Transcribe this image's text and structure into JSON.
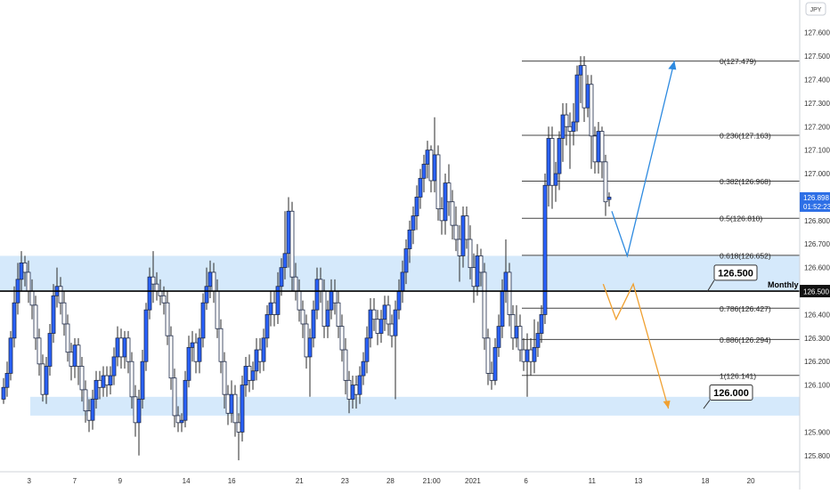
{
  "chart_data": {
    "type": "candlestick",
    "currency": "JPY",
    "y_axis_range": [
      125.75,
      127.72
    ],
    "y_ticks": [
      {
        "v": 127.6,
        "label": "127.600"
      },
      {
        "v": 127.5,
        "label": "127.500"
      },
      {
        "v": 127.4,
        "label": "127.400"
      },
      {
        "v": 127.3,
        "label": "127.300"
      },
      {
        "v": 127.2,
        "label": "127.200"
      },
      {
        "v": 127.1,
        "label": "127.100"
      },
      {
        "v": 127.0,
        "label": "127.000"
      },
      {
        "v": 126.8,
        "label": "126.800"
      },
      {
        "v": 126.7,
        "label": "126.700"
      },
      {
        "v": 126.6,
        "label": "126.600"
      },
      {
        "v": 126.4,
        "label": "126.400"
      },
      {
        "v": 126.3,
        "label": "126.300"
      },
      {
        "v": 126.2,
        "label": "126.200"
      },
      {
        "v": 126.1,
        "label": "126.100"
      },
      {
        "v": 125.9,
        "label": "125.900"
      },
      {
        "v": 125.8,
        "label": "125.800"
      }
    ],
    "x_axis_range": [
      0,
      932
    ],
    "x_ticks": [
      {
        "x": 34,
        "label": "3"
      },
      {
        "x": 87,
        "label": "7"
      },
      {
        "x": 140,
        "label": "9"
      },
      {
        "x": 217,
        "label": "14"
      },
      {
        "x": 270,
        "label": "16"
      },
      {
        "x": 349,
        "label": "21"
      },
      {
        "x": 402,
        "label": "23"
      },
      {
        "x": 455,
        "label": "28"
      },
      {
        "x": 503,
        "label": "21:00"
      },
      {
        "x": 551,
        "label": "2021"
      },
      {
        "x": 613,
        "label": "6"
      },
      {
        "x": 690,
        "label": "11"
      },
      {
        "x": 744,
        "label": "13"
      },
      {
        "x": 822,
        "label": "18"
      },
      {
        "x": 875,
        "label": "20"
      }
    ],
    "current_price": {
      "value": "126.898",
      "countdown": "01:52:23",
      "v": 126.898
    },
    "key_level": {
      "value": 126.5,
      "label": "126.500",
      "axis_label": "126.500",
      "tag": "Monthly"
    },
    "support_target": {
      "value": 126.0,
      "label": "126.000"
    },
    "zones": [
      {
        "from": 126.5,
        "to": 126.65
      },
      {
        "from": 125.97,
        "to": 126.05
      }
    ],
    "fibonacci": [
      {
        "v": 127.479,
        "label": "0(127.479)"
      },
      {
        "v": 127.163,
        "label": "0.236(127.163)"
      },
      {
        "v": 126.968,
        "label": "0.382(126.968)"
      },
      {
        "v": 126.81,
        "label": "0.5(126.810)"
      },
      {
        "v": 126.652,
        "label": "0.618(126.652)"
      },
      {
        "v": 126.427,
        "label": "0.786(126.427)"
      },
      {
        "v": 126.294,
        "label": "0.886(126.294)"
      },
      {
        "v": 126.141,
        "label": "1(126.141)"
      }
    ],
    "bullish_path": [
      {
        "x": 713,
        "v": 126.84
      },
      {
        "x": 731,
        "v": 126.65
      },
      {
        "x": 786,
        "v": 127.48
      }
    ],
    "bearish_path": [
      {
        "x": 703,
        "v": 126.53
      },
      {
        "x": 718,
        "v": 126.38
      },
      {
        "x": 738,
        "v": 126.53
      },
      {
        "x": 779,
        "v": 126.0
      }
    ],
    "candles": [
      [
        4,
        126.04,
        126.09,
        126.13,
        126.02
      ],
      [
        8,
        126.09,
        126.15,
        126.2,
        126.05
      ],
      [
        12,
        126.15,
        126.3,
        126.33,
        126.12
      ],
      [
        16,
        126.3,
        126.45,
        126.52,
        126.26
      ],
      [
        20,
        126.45,
        126.55,
        126.62,
        126.4
      ],
      [
        24,
        126.55,
        126.62,
        126.67,
        126.5
      ],
      [
        28,
        126.62,
        126.58,
        126.65,
        126.52
      ],
      [
        32,
        126.58,
        126.5,
        126.63,
        126.45
      ],
      [
        36,
        126.5,
        126.44,
        126.55,
        126.38
      ],
      [
        40,
        126.44,
        126.3,
        126.48,
        126.25
      ],
      [
        44,
        126.3,
        126.19,
        126.34,
        126.14
      ],
      [
        48,
        126.19,
        126.06,
        126.23,
        126.03
      ],
      [
        52,
        126.06,
        126.18,
        126.22,
        126.02
      ],
      [
        56,
        126.18,
        126.32,
        126.36,
        126.14
      ],
      [
        60,
        126.32,
        126.48,
        126.53,
        126.28
      ],
      [
        64,
        126.48,
        126.52,
        126.6,
        126.43
      ],
      [
        68,
        126.52,
        126.45,
        126.56,
        126.4
      ],
      [
        72,
        126.45,
        126.36,
        126.5,
        126.31
      ],
      [
        76,
        126.36,
        126.24,
        126.4,
        126.2
      ],
      [
        80,
        126.24,
        126.18,
        126.28,
        126.12
      ],
      [
        84,
        126.18,
        126.27,
        126.3,
        126.13
      ],
      [
        88,
        126.27,
        126.18,
        126.3,
        126.1
      ],
      [
        92,
        126.18,
        126.08,
        126.22,
        126.03
      ],
      [
        96,
        126.08,
        125.99,
        126.12,
        125.94
      ],
      [
        100,
        125.99,
        125.95,
        126.04,
        125.9
      ],
      [
        104,
        125.95,
        126.04,
        126.08,
        125.91
      ],
      [
        108,
        126.04,
        126.12,
        126.16,
        126.0
      ],
      [
        112,
        126.12,
        126.09,
        126.16,
        126.04
      ],
      [
        116,
        126.09,
        126.14,
        126.18,
        126.05
      ],
      [
        120,
        126.14,
        126.1,
        126.18,
        126.05
      ],
      [
        124,
        126.1,
        126.14,
        126.18,
        126.06
      ],
      [
        128,
        126.14,
        126.22,
        126.26,
        126.1
      ],
      [
        132,
        126.22,
        126.3,
        126.35,
        126.18
      ],
      [
        136,
        126.3,
        126.22,
        126.34,
        126.17
      ],
      [
        140,
        126.22,
        126.3,
        126.33,
        126.17
      ],
      [
        144,
        126.3,
        126.2,
        126.33,
        126.15
      ],
      [
        148,
        126.2,
        126.05,
        126.24,
        126.0
      ],
      [
        152,
        126.05,
        125.94,
        126.1,
        125.88
      ],
      [
        156,
        125.94,
        126.04,
        126.08,
        125.8
      ],
      [
        160,
        126.04,
        126.2,
        126.25,
        126.0
      ],
      [
        164,
        126.2,
        126.42,
        126.45,
        126.16
      ],
      [
        168,
        126.42,
        126.56,
        126.6,
        126.38
      ],
      [
        172,
        126.56,
        126.53,
        126.67,
        126.45
      ],
      [
        176,
        126.53,
        126.5,
        126.58,
        126.46
      ],
      [
        180,
        126.5,
        126.48,
        126.55,
        126.44
      ],
      [
        184,
        126.48,
        126.45,
        126.52,
        126.4
      ],
      [
        188,
        126.45,
        126.31,
        126.5,
        126.27
      ],
      [
        192,
        126.31,
        126.13,
        126.35,
        126.08
      ],
      [
        196,
        126.13,
        125.97,
        126.17,
        125.92
      ],
      [
        200,
        125.97,
        125.94,
        126.01,
        125.9
      ],
      [
        204,
        125.94,
        125.95,
        125.98,
        125.9
      ],
      [
        208,
        125.95,
        126.12,
        126.16,
        125.92
      ],
      [
        212,
        126.12,
        126.26,
        126.31,
        126.09
      ],
      [
        216,
        126.26,
        126.28,
        126.33,
        126.2
      ],
      [
        220,
        126.28,
        126.2,
        126.32,
        126.15
      ],
      [
        224,
        126.2,
        126.3,
        126.34,
        126.15
      ],
      [
        228,
        126.3,
        126.45,
        126.49,
        126.26
      ],
      [
        232,
        126.45,
        126.52,
        126.6,
        126.42
      ],
      [
        236,
        126.52,
        126.58,
        126.63,
        126.47
      ],
      [
        240,
        126.58,
        126.5,
        126.62,
        126.45
      ],
      [
        244,
        126.5,
        126.34,
        126.55,
        126.3
      ],
      [
        248,
        126.34,
        126.2,
        126.38,
        126.15
      ],
      [
        252,
        126.2,
        126.06,
        126.24,
        126.0
      ],
      [
        256,
        126.06,
        125.98,
        126.1,
        125.93
      ],
      [
        260,
        125.98,
        126.06,
        126.12,
        125.94
      ],
      [
        264,
        126.06,
        125.94,
        126.1,
        125.88
      ],
      [
        268,
        125.94,
        125.9,
        125.98,
        125.78
      ],
      [
        272,
        125.9,
        126.1,
        126.14,
        125.86
      ],
      [
        276,
        126.1,
        126.18,
        126.22,
        126.05
      ],
      [
        280,
        126.18,
        126.12,
        126.23,
        126.07
      ],
      [
        284,
        126.12,
        126.16,
        126.2,
        126.08
      ],
      [
        288,
        126.16,
        126.25,
        126.3,
        126.12
      ],
      [
        292,
        126.25,
        126.2,
        126.3,
        126.15
      ],
      [
        296,
        126.2,
        126.3,
        126.34,
        126.16
      ],
      [
        300,
        126.3,
        126.4,
        126.44,
        126.26
      ],
      [
        304,
        126.4,
        126.45,
        126.5,
        126.35
      ],
      [
        308,
        126.45,
        126.4,
        126.5,
        126.35
      ],
      [
        312,
        126.4,
        126.52,
        126.58,
        126.36
      ],
      [
        316,
        126.52,
        126.6,
        126.64,
        126.48
      ],
      [
        320,
        126.6,
        126.66,
        126.84,
        126.55
      ],
      [
        324,
        126.66,
        126.84,
        126.9,
        126.6
      ],
      [
        328,
        126.84,
        126.56,
        126.88,
        126.5
      ],
      [
        332,
        126.56,
        126.5,
        126.62,
        126.46
      ],
      [
        336,
        126.5,
        126.42,
        126.55,
        126.37
      ],
      [
        340,
        126.42,
        126.36,
        126.46,
        126.3
      ],
      [
        344,
        126.36,
        126.22,
        126.4,
        126.17
      ],
      [
        348,
        126.22,
        126.3,
        126.34,
        126.05
      ],
      [
        352,
        126.3,
        126.42,
        126.46,
        126.26
      ],
      [
        356,
        126.42,
        126.55,
        126.6,
        126.38
      ],
      [
        360,
        126.55,
        126.5,
        126.6,
        126.45
      ],
      [
        364,
        126.5,
        126.35,
        126.55,
        126.3
      ],
      [
        368,
        126.35,
        126.42,
        126.46,
        126.3
      ],
      [
        372,
        126.42,
        126.5,
        126.55,
        126.38
      ],
      [
        376,
        126.5,
        126.45,
        126.55,
        126.4
      ],
      [
        380,
        126.45,
        126.35,
        126.5,
        126.3
      ],
      [
        384,
        126.35,
        126.25,
        126.4,
        126.2
      ],
      [
        388,
        126.25,
        126.12,
        126.3,
        126.06
      ],
      [
        392,
        126.12,
        126.04,
        126.16,
        125.98
      ],
      [
        396,
        126.04,
        126.1,
        126.14,
        126.0
      ],
      [
        400,
        126.1,
        126.06,
        126.14,
        126.0
      ],
      [
        404,
        126.06,
        126.14,
        126.18,
        126.02
      ],
      [
        408,
        126.14,
        126.2,
        126.24,
        126.1
      ],
      [
        412,
        126.2,
        126.3,
        126.35,
        126.15
      ],
      [
        416,
        126.3,
        126.42,
        126.47,
        126.26
      ],
      [
        420,
        126.42,
        126.38,
        126.47,
        126.33
      ],
      [
        424,
        126.38,
        126.32,
        126.42,
        126.27
      ],
      [
        428,
        126.32,
        126.38,
        126.42,
        126.28
      ],
      [
        432,
        126.38,
        126.44,
        126.48,
        126.33
      ],
      [
        436,
        126.44,
        126.36,
        126.48,
        126.31
      ],
      [
        440,
        126.36,
        126.31,
        126.4,
        126.26
      ],
      [
        444,
        126.31,
        126.42,
        126.46,
        126.04
      ],
      [
        448,
        126.42,
        126.5,
        126.55,
        126.38
      ],
      [
        452,
        126.5,
        126.58,
        126.63,
        126.45
      ],
      [
        456,
        126.58,
        126.68,
        126.72,
        126.53
      ],
      [
        460,
        126.68,
        126.76,
        126.8,
        126.62
      ],
      [
        464,
        126.76,
        126.82,
        126.86,
        126.7
      ],
      [
        468,
        126.82,
        126.9,
        126.95,
        126.76
      ],
      [
        472,
        126.9,
        126.98,
        127.02,
        126.85
      ],
      [
        476,
        126.98,
        127.04,
        127.08,
        126.92
      ],
      [
        480,
        127.04,
        127.1,
        127.14,
        126.98
      ],
      [
        484,
        127.1,
        126.97,
        127.12,
        126.92
      ],
      [
        488,
        126.97,
        127.08,
        127.24,
        126.92
      ],
      [
        492,
        127.08,
        126.85,
        127.12,
        126.8
      ],
      [
        496,
        126.85,
        126.8,
        126.9,
        126.74
      ],
      [
        500,
        126.8,
        126.96,
        127.0,
        126.74
      ],
      [
        504,
        126.96,
        126.88,
        127.04,
        126.82
      ],
      [
        508,
        126.88,
        126.78,
        126.93,
        126.72
      ],
      [
        512,
        126.78,
        126.72,
        126.86,
        126.67
      ],
      [
        516,
        126.72,
        126.65,
        126.78,
        126.54
      ],
      [
        520,
        126.65,
        126.82,
        126.86,
        126.6
      ],
      [
        524,
        126.82,
        126.72,
        126.86,
        126.68
      ],
      [
        528,
        126.72,
        126.6,
        126.78,
        126.55
      ],
      [
        532,
        126.6,
        126.52,
        126.66,
        126.45
      ],
      [
        536,
        126.52,
        126.65,
        126.7,
        126.48
      ],
      [
        540,
        126.65,
        126.58,
        126.68,
        126.52
      ],
      [
        544,
        126.58,
        126.3,
        126.62,
        126.25
      ],
      [
        548,
        126.3,
        126.15,
        126.34,
        126.1
      ],
      [
        552,
        126.15,
        126.12,
        126.2,
        126.08
      ],
      [
        556,
        126.12,
        126.26,
        126.3,
        126.1
      ],
      [
        560,
        126.26,
        126.35,
        126.4,
        126.22
      ],
      [
        564,
        126.35,
        126.5,
        126.55,
        126.3
      ],
      [
        568,
        126.5,
        126.58,
        126.72,
        126.45
      ],
      [
        572,
        126.58,
        126.4,
        126.62,
        126.35
      ],
      [
        576,
        126.4,
        126.3,
        126.44,
        126.25
      ],
      [
        580,
        126.3,
        126.35,
        126.44,
        126.26
      ],
      [
        584,
        126.35,
        126.25,
        126.4,
        126.2
      ],
      [
        588,
        126.25,
        126.2,
        126.3,
        126.16
      ],
      [
        592,
        126.2,
        126.25,
        126.32,
        126.05
      ],
      [
        596,
        126.25,
        126.2,
        126.3,
        126.14
      ],
      [
        600,
        126.2,
        126.26,
        126.38,
        126.15
      ],
      [
        604,
        126.26,
        126.32,
        126.37,
        126.22
      ],
      [
        608,
        126.32,
        126.4,
        126.44,
        126.28
      ],
      [
        612,
        126.4,
        126.95,
        127.0,
        126.36
      ],
      [
        616,
        126.95,
        127.15,
        127.2,
        126.86
      ],
      [
        620,
        127.15,
        126.95,
        127.2,
        126.85
      ],
      [
        624,
        126.95,
        127.0,
        127.05,
        126.88
      ],
      [
        628,
        127.0,
        127.15,
        127.18,
        126.93
      ],
      [
        632,
        127.15,
        127.25,
        127.3,
        127.05
      ],
      [
        636,
        127.25,
        127.2,
        127.3,
        127.12
      ],
      [
        640,
        127.2,
        127.18,
        127.26,
        127.02
      ],
      [
        644,
        127.18,
        127.22,
        127.3,
        127.12
      ],
      [
        648,
        127.22,
        127.42,
        127.46,
        127.18
      ],
      [
        652,
        127.42,
        127.46,
        127.5,
        127.3
      ],
      [
        656,
        127.46,
        127.28,
        127.5,
        127.22
      ],
      [
        660,
        127.28,
        127.38,
        127.42,
        127.24
      ],
      [
        664,
        127.38,
        127.16,
        127.42,
        127.02
      ],
      [
        668,
        127.16,
        127.05,
        127.2,
        127.0
      ],
      [
        672,
        127.05,
        127.18,
        127.22,
        127.0
      ],
      [
        676,
        127.18,
        127.05,
        127.2,
        126.98
      ],
      [
        680,
        127.05,
        126.88,
        127.08,
        126.82
      ],
      [
        684,
        126.89,
        126.9,
        126.92,
        126.86
      ]
    ]
  }
}
